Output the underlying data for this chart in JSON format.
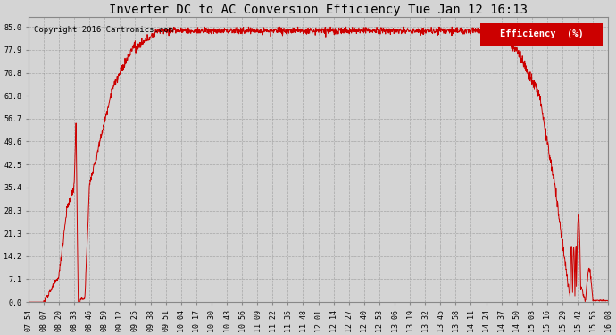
{
  "title": "Inverter DC to AC Conversion Efficiency Tue Jan 12 16:13",
  "copyright": "Copyright 2016 Cartronics.com",
  "legend_label": "Efficiency  (%)",
  "background_color": "#d4d4d4",
  "plot_bg_color": "#d4d4d4",
  "line_color": "#cc0000",
  "legend_bg": "#cc0000",
  "legend_text_color": "#ffffff",
  "yticks": [
    0.0,
    7.1,
    14.2,
    21.3,
    28.3,
    35.4,
    42.5,
    49.6,
    56.7,
    63.8,
    70.8,
    77.9,
    85.0
  ],
  "ylim": [
    0.0,
    88.0
  ],
  "xtick_labels": [
    "07:54",
    "08:07",
    "08:20",
    "08:33",
    "08:46",
    "08:59",
    "09:12",
    "09:25",
    "09:38",
    "09:51",
    "10:04",
    "10:17",
    "10:30",
    "10:43",
    "10:56",
    "11:09",
    "11:22",
    "11:35",
    "11:48",
    "12:01",
    "12:14",
    "12:27",
    "12:40",
    "12:53",
    "13:06",
    "13:19",
    "13:32",
    "13:45",
    "13:58",
    "14:11",
    "14:24",
    "14:37",
    "14:50",
    "15:03",
    "15:16",
    "15:29",
    "15:42",
    "15:55",
    "16:08"
  ]
}
